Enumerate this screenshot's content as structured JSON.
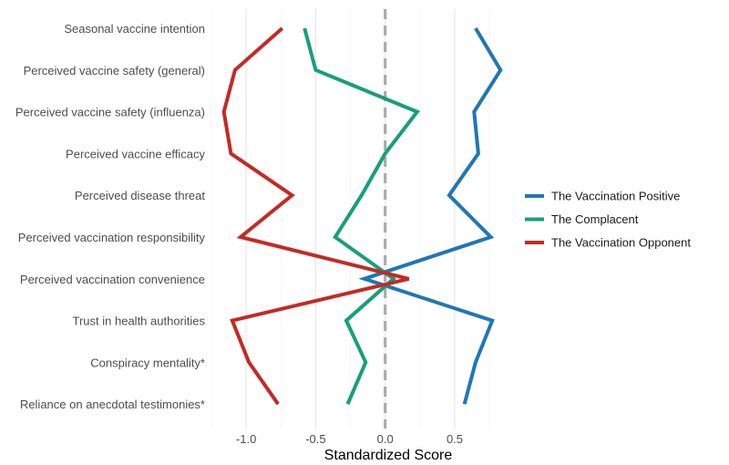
{
  "chart_data": {
    "type": "line",
    "orientation": "horizontal",
    "title": "",
    "xlabel": "Standardized Score",
    "ylabel": "",
    "xlim": [
      -1.25,
      0.9
    ],
    "xticks": [
      -1.0,
      -0.5,
      0.0,
      0.5
    ],
    "xtick_labels": [
      "-1.0",
      "-0.5",
      "0.0",
      "0.5"
    ],
    "reference_line": {
      "x": 0.0,
      "style": "dashed",
      "color": "#aaaaaa"
    },
    "categories": [
      "Seasonal vaccine intention",
      "Perceived vaccine safety (general)",
      "Perceived vaccine safety (influenza)",
      "Perceived vaccine efficacy",
      "Perceived disease threat",
      "Perceived vaccination responsibility",
      "Perceived vaccination convenience",
      "Trust in health authorities",
      "Conspiracy mentality*",
      "Reliance on anecdotal testimonies*"
    ],
    "series": [
      {
        "name": "The Vaccination Positive",
        "color": "#1f77b4",
        "values": [
          0.65,
          0.83,
          0.64,
          0.67,
          0.46,
          0.76,
          -0.15,
          0.77,
          0.65,
          0.57
        ]
      },
      {
        "name": "The Complacent",
        "color": "#15a07a",
        "values": [
          -0.58,
          -0.5,
          0.23,
          0.0,
          -0.17,
          -0.36,
          0.06,
          -0.28,
          -0.14,
          -0.27
        ]
      },
      {
        "name": "The Vaccination Opponent",
        "color": "#c42a24",
        "values": [
          -0.74,
          -1.08,
          -1.16,
          -1.11,
          -0.67,
          -1.04,
          0.17,
          -1.1,
          -0.98,
          -0.77
        ]
      }
    ],
    "legend": {
      "position": "right"
    }
  }
}
